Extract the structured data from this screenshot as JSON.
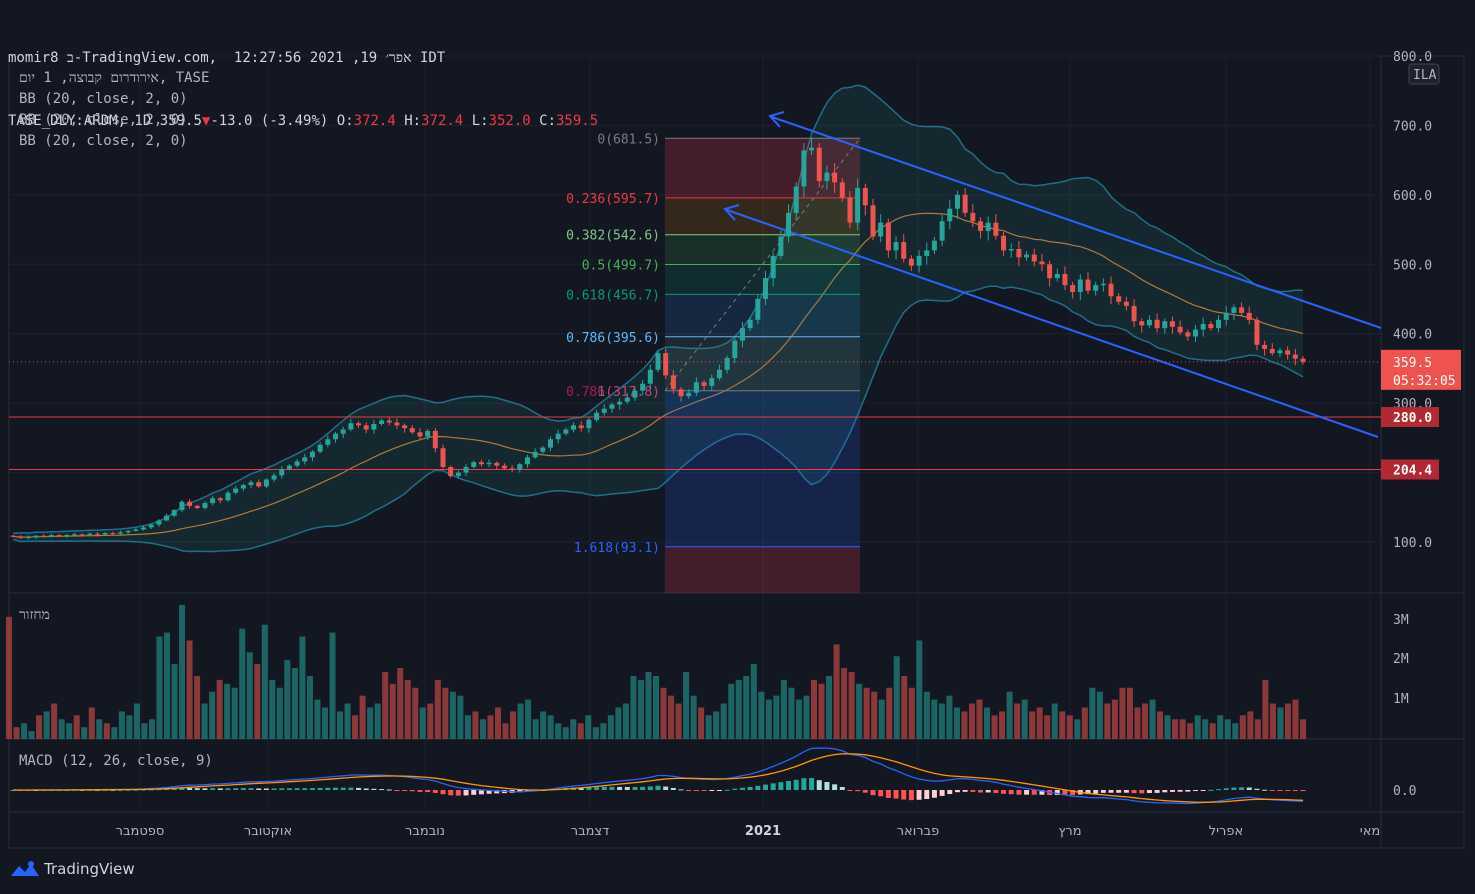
{
  "header": {
    "line1": "momir8 ב-TradingView.com,  אפר׳ 19, 2021 12:27:56 IDT",
    "symbol": "TASE_DLY:ARDM, 1D",
    "price": "359.5",
    "change": "-13.0 (-3.49%)",
    "o_label": "O:",
    "o_value": "372.4",
    "h_label": "H:",
    "h_value": "372.4",
    "l_label": "L:",
    "l_value": "352.0",
    "c_label": "C:",
    "c_value": "359.5"
  },
  "legend": {
    "main": "אירודרום קבוצה, 1 יום, TASE",
    "bb1": "BB (20, close, 2, 0)",
    "bb2": "BB (20, close, 2, 0)",
    "bb3": "BB (20, close, 2, 0)",
    "volume": "מחזור",
    "macd": "MACD (12, 26, close, 9)"
  },
  "brand": "TradingView",
  "currency": "ILA",
  "chart_data": {
    "type": "candlestick",
    "price_axis": {
      "ticks": [
        100,
        200,
        300,
        400,
        500,
        600,
        700,
        800
      ],
      "labels": [
        "100.0",
        "",
        "300.0",
        "400.0",
        "500.0",
        "600.0",
        "700.0",
        "800.0"
      ]
    },
    "time_axis": {
      "labels": [
        "ספטמבר",
        "אוקטובר",
        "נובמבר",
        "דצמבר",
        "2021",
        "פברואר",
        "מרץ",
        "אפריל",
        "מאי"
      ]
    },
    "last_price": {
      "value": 359.5,
      "label": "359.5",
      "countdown": "05:32:05"
    },
    "horizontal_lines": [
      {
        "value": 280.0,
        "label": "280.0"
      },
      {
        "value": 204.4,
        "label": "204.4"
      }
    ],
    "fib_levels": [
      {
        "level": "0",
        "value": 681.5,
        "label": "0(681.5)",
        "color": "#787b86"
      },
      {
        "level": "0.236",
        "value": 595.7,
        "label": "0.236(595.7)",
        "color": "#f23645"
      },
      {
        "level": "0.382",
        "value": 542.6,
        "label": "0.382(542.6)",
        "color": "#81c784"
      },
      {
        "level": "0.5",
        "value": 499.7,
        "label": "0.5(499.7)",
        "color": "#4caf50"
      },
      {
        "level": "0.618",
        "value": 456.7,
        "label": "0.618(456.7)",
        "color": "#089981"
      },
      {
        "level": "0.786",
        "value": 395.6,
        "label": "0.786(395.6)",
        "color": "#64b5f6"
      },
      {
        "level": "1",
        "value": 317.8,
        "label": "1(317.8)",
        "color": "#787b86"
      },
      {
        "level": "1.618",
        "value": 93.1,
        "label": "1.618(93.1)",
        "color": "#2962ff"
      }
    ],
    "fib_overlap_label": "0.786(317.8)",
    "closes": [
      108,
      106,
      107,
      109,
      108,
      110,
      109,
      110,
      111,
      110,
      112,
      111,
      113,
      112,
      114,
      116,
      118,
      121,
      125,
      131,
      138,
      146,
      158,
      152,
      149,
      156,
      163,
      160,
      171,
      177,
      182,
      186,
      180,
      190,
      196,
      205,
      210,
      216,
      222,
      230,
      240,
      248,
      256,
      262,
      271,
      268,
      262,
      270,
      275,
      272,
      268,
      264,
      258,
      252,
      260,
      235,
      208,
      195,
      200,
      208,
      215,
      212,
      214,
      210,
      206,
      204,
      212,
      222,
      230,
      236,
      248,
      256,
      262,
      268,
      264,
      276,
      286,
      292,
      298,
      302,
      308,
      318,
      328,
      348,
      372,
      340,
      320,
      310,
      315,
      330,
      325,
      336,
      348,
      365,
      390,
      408,
      420,
      450,
      480,
      512,
      540,
      574,
      612,
      664,
      668,
      620,
      632,
      618,
      596,
      560,
      610,
      585,
      540,
      560,
      520,
      532,
      508,
      498,
      512,
      520,
      534,
      562,
      580,
      600,
      574,
      562,
      548,
      560,
      541,
      520,
      522,
      510,
      514,
      504,
      500,
      480,
      486,
      470,
      460,
      478,
      462,
      470,
      472,
      454,
      446,
      440,
      418,
      412,
      420,
      408,
      418,
      410,
      402,
      396,
      406,
      414,
      408,
      420,
      430,
      438,
      430,
      420,
      384,
      378,
      372,
      376,
      370,
      364,
      359.5
    ],
    "volume": {
      "ticks": [
        "1M",
        "2M",
        "3M"
      ],
      "values_m": [
        3.1,
        0.3,
        0.4,
        0.2,
        0.6,
        0.7,
        0.9,
        0.5,
        0.4,
        0.6,
        0.3,
        0.8,
        0.5,
        0.4,
        0.3,
        0.7,
        0.6,
        0.9,
        0.4,
        0.5,
        2.6,
        2.7,
        1.9,
        3.4,
        2.5,
        1.6,
        0.9,
        1.2,
        1.5,
        1.4,
        1.3,
        2.8,
        2.2,
        1.9,
        2.9,
        1.5,
        1.3,
        2.0,
        1.8,
        2.6,
        1.6,
        1.0,
        0.8,
        2.7,
        0.7,
        0.9,
        0.6,
        1.1,
        0.8,
        0.9,
        1.7,
        1.4,
        1.8,
        1.5,
        1.3,
        0.8,
        0.9,
        1.5,
        1.3,
        1.2,
        1.1,
        0.6,
        0.7,
        0.5,
        0.6,
        0.8,
        0.4,
        0.7,
        0.9,
        1.0,
        0.5,
        0.7,
        0.6,
        0.4,
        0.3,
        0.5,
        0.4,
        0.6,
        0.3,
        0.4,
        0.6,
        0.8,
        0.9,
        1.6,
        1.5,
        1.7,
        1.6,
        1.3,
        1.1,
        0.9,
        1.7,
        1.1,
        0.8,
        0.6,
        0.7,
        0.9,
        1.4,
        1.5,
        1.6,
        1.9,
        1.2,
        1.0,
        1.1,
        1.5,
        1.3,
        1.0,
        1.1,
        1.5,
        1.4,
        1.6,
        2.4,
        1.8,
        1.7,
        1.4,
        1.3,
        1.2,
        1.0,
        1.3,
        2.1,
        1.6,
        1.3,
        2.5,
        1.2,
        1.0,
        0.9,
        1.1,
        0.8,
        0.7,
        0.9,
        1.0,
        0.8,
        0.6,
        0.7,
        1.2,
        0.9,
        1.0,
        0.7,
        0.8,
        0.6,
        0.9,
        0.7,
        0.6,
        0.5,
        0.8,
        1.3,
        1.2,
        0.9,
        1.0,
        1.3,
        1.3,
        0.8,
        0.9,
        1.0,
        0.7,
        0.6,
        0.5,
        0.5,
        0.4,
        0.6,
        0.5,
        0.4,
        0.6,
        0.5,
        0.4,
        0.6,
        0.7,
        0.5,
        1.5,
        0.9,
        0.8,
        0.9,
        1.0,
        0.5
      ]
    },
    "macd": {
      "ticks": [
        "0.0"
      ],
      "zero_label": "0.0"
    }
  }
}
